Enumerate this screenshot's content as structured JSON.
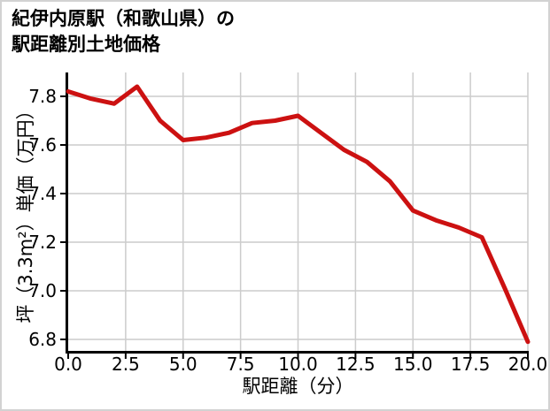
{
  "title": {
    "line1": "紀伊内原駅（和歌山県）の",
    "line2": "駅距離別土地価格"
  },
  "chart_data": {
    "type": "line",
    "title": "紀伊内原駅（和歌山県）の駅距離別土地価格",
    "xlabel": "駅距離（分）",
    "ylabel": "坪（3.3m²）単価（万円）",
    "x": [
      0,
      1,
      2,
      3,
      4,
      5,
      6,
      7,
      8,
      9,
      10,
      11,
      12,
      13,
      14,
      15,
      16,
      17,
      18,
      19,
      20
    ],
    "values": [
      7.82,
      7.79,
      7.77,
      7.84,
      7.7,
      7.62,
      7.63,
      7.65,
      7.69,
      7.7,
      7.72,
      7.65,
      7.58,
      7.53,
      7.45,
      7.33,
      7.29,
      7.26,
      7.22,
      7.01,
      6.79
    ],
    "xlim": [
      0,
      20
    ],
    "ylim": [
      6.75,
      7.9
    ],
    "xticks": [
      0,
      2.5,
      5,
      7.5,
      10,
      12.5,
      15,
      17.5,
      20
    ],
    "xtick_labels": [
      "0.0",
      "2.5",
      "5.0",
      "7.5",
      "10.0",
      "12.5",
      "15.0",
      "17.5",
      "20.0"
    ],
    "yticks": [
      6.8,
      7.0,
      7.2,
      7.4,
      7.6,
      7.8
    ],
    "ytick_labels": [
      "6.8",
      "7.0",
      "7.2",
      "7.4",
      "7.6",
      "7.8"
    ],
    "grid": true,
    "legend": false
  },
  "colors": {
    "line": "#cc1111",
    "grid": "#cccccc",
    "axis": "#000000",
    "text": "#000000",
    "frame_border": "#d2d2d2",
    "background": "#ffffff"
  }
}
